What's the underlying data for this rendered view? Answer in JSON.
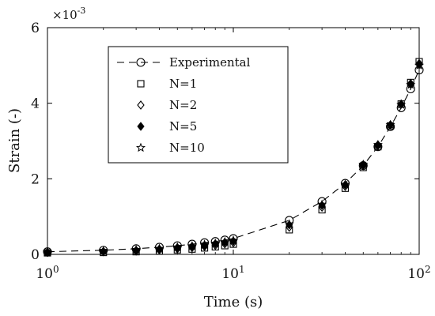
{
  "chart_data": {
    "type": "scatter",
    "xlabel": "Time (s)",
    "ylabel": "Strain (-)",
    "y_multiplier_label": "×10",
    "y_multiplier_exp": "-3",
    "x_scale": "log",
    "xlim": [
      1,
      100
    ],
    "ylim": [
      0,
      6
    ],
    "x_ticks": [
      {
        "value": 1,
        "base": "10",
        "exp": "0"
      },
      {
        "value": 10,
        "base": "10",
        "exp": "1"
      },
      {
        "value": 100,
        "base": "10",
        "exp": "2"
      }
    ],
    "y_ticks": [
      {
        "value": 0,
        "label": "0"
      },
      {
        "value": 2,
        "label": "2"
      },
      {
        "value": 4,
        "label": "4"
      },
      {
        "value": 6,
        "label": "6"
      }
    ],
    "legend_position": "top-left-inset",
    "grid": false,
    "series": [
      {
        "name": "Experimental",
        "marker": "circle-open",
        "line": "dashed",
        "x": [
          1,
          2,
          3,
          4,
          5,
          6,
          7,
          8,
          9,
          10,
          20,
          30,
          40,
          50,
          60,
          70,
          80,
          90,
          100
        ],
        "y": [
          0.07,
          0.11,
          0.15,
          0.19,
          0.23,
          0.27,
          0.31,
          0.34,
          0.38,
          0.42,
          0.9,
          1.4,
          1.88,
          2.35,
          2.85,
          3.38,
          3.88,
          4.38,
          4.88
        ]
      },
      {
        "name": "N=1",
        "marker": "square-open",
        "line": "none",
        "x": [
          1,
          2,
          3,
          4,
          5,
          6,
          7,
          8,
          9,
          10,
          20,
          30,
          40,
          50,
          60,
          70,
          80,
          90,
          100
        ],
        "y": [
          0.04,
          0.05,
          0.07,
          0.09,
          0.12,
          0.14,
          0.17,
          0.2,
          0.23,
          0.27,
          0.65,
          1.18,
          1.75,
          2.3,
          2.85,
          3.4,
          3.98,
          4.55,
          5.1
        ]
      },
      {
        "name": "N=2",
        "marker": "diamond-open",
        "line": "none",
        "x": [
          1,
          2,
          3,
          4,
          5,
          6,
          7,
          8,
          9,
          10,
          20,
          30,
          40,
          50,
          60,
          70,
          80,
          90,
          100
        ],
        "y": [
          0.05,
          0.07,
          0.09,
          0.12,
          0.15,
          0.18,
          0.21,
          0.24,
          0.28,
          0.31,
          0.72,
          1.25,
          1.8,
          2.35,
          2.88,
          3.42,
          3.98,
          4.52,
          5.05
        ]
      },
      {
        "name": "N=5",
        "marker": "diamond-filled",
        "line": "none",
        "x": [
          1,
          2,
          3,
          4,
          5,
          6,
          7,
          8,
          9,
          10,
          20,
          30,
          40,
          50,
          60,
          70,
          80,
          90,
          100
        ],
        "y": [
          0.06,
          0.08,
          0.11,
          0.14,
          0.18,
          0.21,
          0.24,
          0.28,
          0.32,
          0.35,
          0.78,
          1.3,
          1.84,
          2.37,
          2.9,
          3.43,
          3.97,
          4.5,
          5.02
        ]
      },
      {
        "name": "N=10",
        "marker": "star-open",
        "line": "none",
        "x": [
          1,
          2,
          3,
          4,
          5,
          6,
          7,
          8,
          9,
          10,
          20,
          30,
          40,
          50,
          60,
          70,
          80,
          90,
          100
        ],
        "y": [
          0.06,
          0.09,
          0.12,
          0.15,
          0.19,
          0.22,
          0.26,
          0.29,
          0.33,
          0.37,
          0.8,
          1.32,
          1.85,
          2.38,
          2.9,
          3.43,
          3.96,
          4.49,
          5.0
        ]
      }
    ]
  }
}
